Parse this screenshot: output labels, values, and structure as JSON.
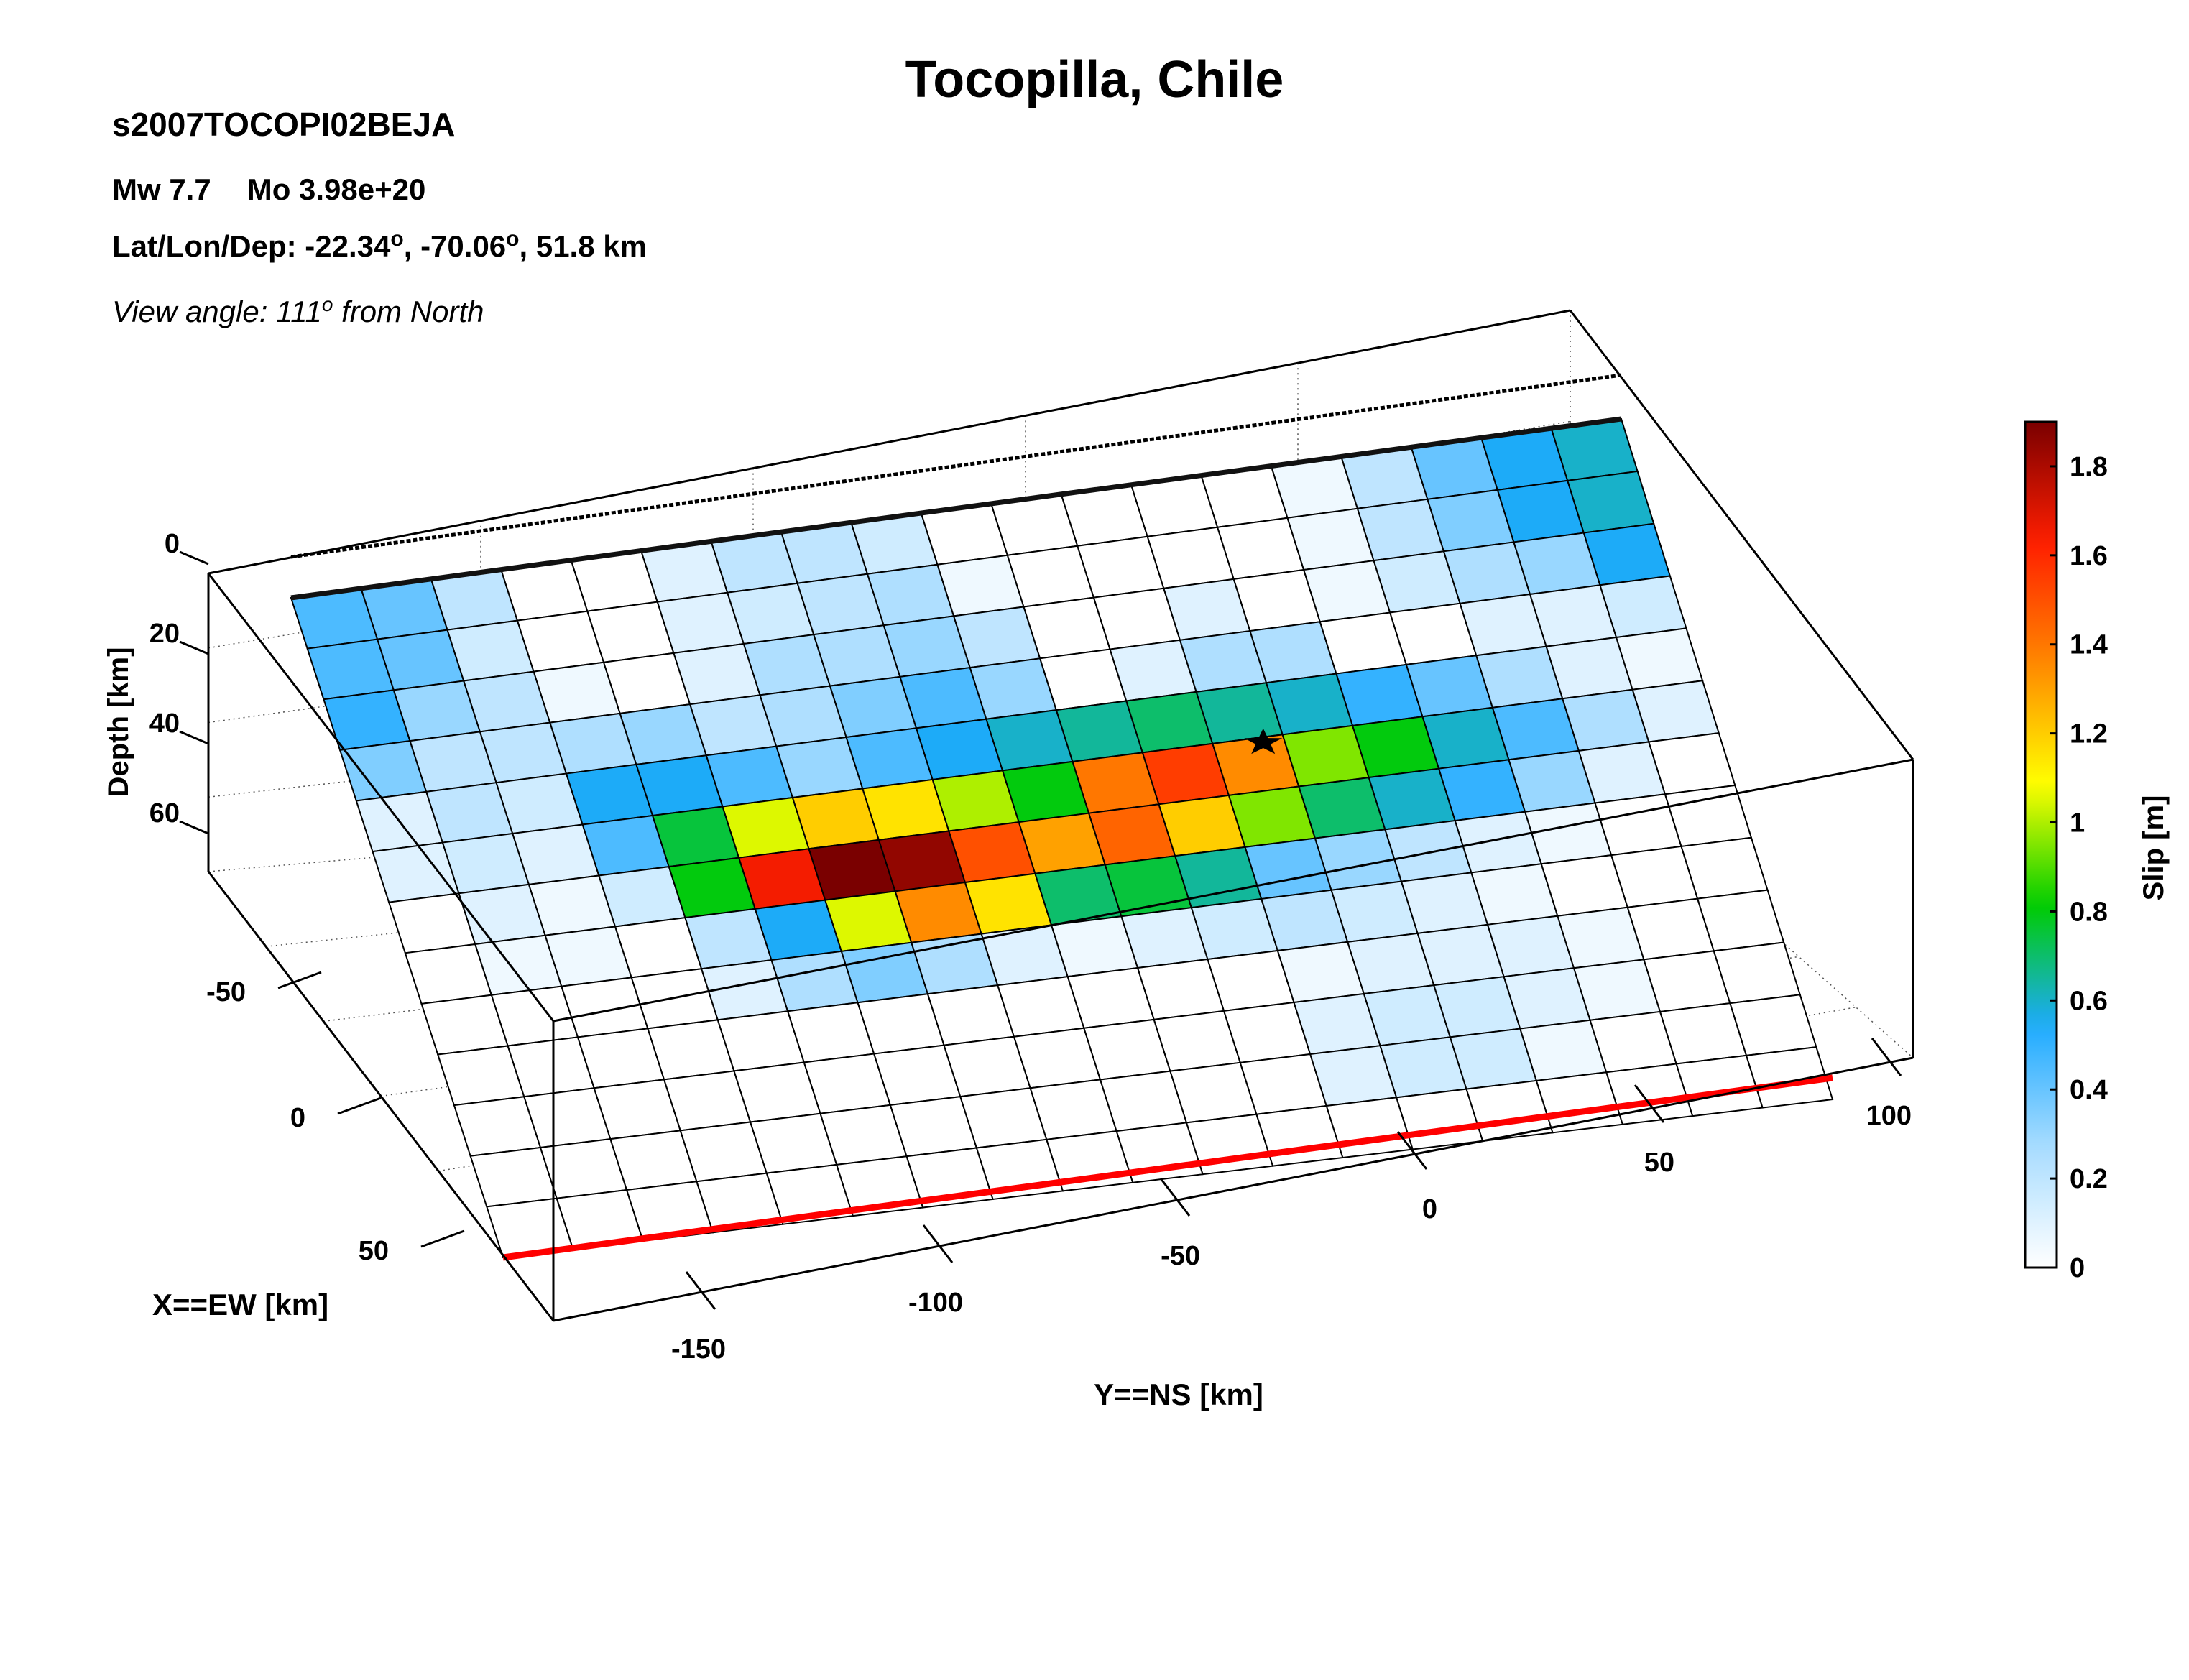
{
  "header": {
    "title": "Tocopilla, Chile",
    "model": "s2007TOCOPI02BEJA",
    "mw": "Mw 7.7",
    "mo": "Mo 3.98e+20",
    "lat_lon_dep_prefix": "Lat/Lon/Dep: -22.34",
    "lon": ", -70.06",
    "dep": ", 51.8 km",
    "degree_mark": "o",
    "view_prefix": "View angle: 111",
    "view_suffix": " from North"
  },
  "colors": {
    "background": "#ffffff",
    "trench": "#ff0000",
    "colormap": [
      "#ffffff",
      "#a8dcff",
      "#1eaaff",
      "#00cc00",
      "#ffff00",
      "#ff8800",
      "#ff1e00",
      "#7a0000"
    ]
  },
  "chart_data": {
    "type": "heatmap",
    "title": "Tocopilla, Chile",
    "x_axis": {
      "label": "X==EW [km]",
      "ticks": [
        "-50",
        "0",
        "50"
      ]
    },
    "y_axis": {
      "label": "Y==NS [km]",
      "ticks": [
        "-150",
        "-100",
        "-50",
        "0",
        "50",
        "100"
      ]
    },
    "z_axis": {
      "label": "Depth [km]",
      "ticks": [
        "0",
        "20",
        "40",
        "60"
      ]
    },
    "colorbar": {
      "label": "Slip [m]",
      "ticks": [
        "0",
        "0.2",
        "0.4",
        "0.6",
        "0.8",
        "1",
        "1.2",
        "1.4",
        "1.6",
        "1.8"
      ],
      "range": [
        0,
        1.9
      ]
    },
    "grid": {
      "rows": 13,
      "cols": 19,
      "row_axis": "down-dip",
      "col_axis": "along-strike"
    },
    "slip": [
      [
        0.45,
        0.4,
        0.2,
        0.0,
        0.0,
        0.1,
        0.2,
        0.2,
        0.15,
        0.0,
        0.0,
        0.0,
        0.0,
        0.0,
        0.05,
        0.2,
        0.4,
        0.55,
        0.6
      ],
      [
        0.45,
        0.4,
        0.15,
        0.0,
        0.0,
        0.1,
        0.15,
        0.2,
        0.25,
        0.05,
        0.0,
        0.0,
        0.0,
        0.0,
        0.05,
        0.2,
        0.35,
        0.55,
        0.6
      ],
      [
        0.5,
        0.3,
        0.2,
        0.05,
        0.0,
        0.1,
        0.25,
        0.25,
        0.3,
        0.2,
        0.0,
        0.0,
        0.1,
        0.0,
        0.05,
        0.15,
        0.25,
        0.3,
        0.55
      ],
      [
        0.35,
        0.2,
        0.2,
        0.25,
        0.3,
        0.2,
        0.25,
        0.35,
        0.45,
        0.3,
        0.0,
        0.1,
        0.25,
        0.25,
        0.0,
        0.0,
        0.1,
        0.1,
        0.15
      ],
      [
        0.1,
        0.2,
        0.15,
        0.55,
        0.55,
        0.45,
        0.3,
        0.45,
        0.55,
        0.6,
        0.65,
        0.7,
        0.65,
        0.6,
        0.5,
        0.4,
        0.25,
        0.1,
        0.05
      ],
      [
        0.1,
        0.15,
        0.1,
        0.45,
        0.75,
        1.05,
        1.2,
        1.15,
        1.0,
        0.8,
        1.4,
        1.55,
        1.35,
        0.95,
        0.8,
        0.6,
        0.45,
        0.25,
        0.1
      ],
      [
        0.0,
        0.1,
        0.05,
        0.15,
        0.8,
        1.65,
        1.9,
        1.85,
        1.5,
        1.3,
        1.45,
        1.2,
        0.95,
        0.7,
        0.6,
        0.5,
        0.3,
        0.1,
        0.0
      ],
      [
        0.0,
        0.05,
        0.05,
        0.0,
        0.2,
        0.55,
        1.05,
        1.35,
        1.15,
        0.7,
        0.75,
        0.65,
        0.4,
        0.3,
        0.2,
        0.1,
        0.05,
        0.0,
        0.0
      ],
      [
        0.0,
        0.0,
        0.0,
        0.0,
        0.1,
        0.25,
        0.35,
        0.25,
        0.1,
        0.05,
        0.1,
        0.15,
        0.2,
        0.15,
        0.1,
        0.05,
        0.0,
        0.0,
        0.0
      ],
      [
        0.0,
        0.0,
        0.0,
        0.0,
        0.0,
        0.0,
        0.0,
        0.0,
        0.0,
        0.0,
        0.0,
        0.0,
        0.05,
        0.1,
        0.1,
        0.1,
        0.05,
        0.0,
        0.0
      ],
      [
        0.0,
        0.0,
        0.0,
        0.0,
        0.0,
        0.0,
        0.0,
        0.0,
        0.0,
        0.0,
        0.0,
        0.0,
        0.1,
        0.15,
        0.15,
        0.1,
        0.05,
        0.0,
        0.0
      ],
      [
        0.0,
        0.0,
        0.0,
        0.0,
        0.0,
        0.0,
        0.0,
        0.0,
        0.0,
        0.0,
        0.0,
        0.0,
        0.1,
        0.15,
        0.15,
        0.05,
        0.0,
        0.0,
        0.0
      ],
      [
        0.0,
        0.0,
        0.0,
        0.0,
        0.0,
        0.0,
        0.0,
        0.0,
        0.0,
        0.0,
        0.0,
        0.0,
        0.0,
        0.0,
        0.0,
        0.0,
        0.0,
        0.0,
        0.0
      ]
    ],
    "hypocenter": {
      "marker": "star",
      "row": 5.1,
      "col": 12.7
    }
  }
}
